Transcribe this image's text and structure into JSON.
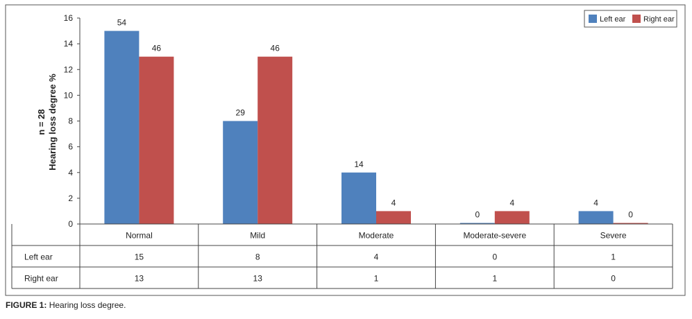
{
  "caption": {
    "label": "FIGURE 1:",
    "text": "Hearing loss degree."
  },
  "chart_data": {
    "type": "bar",
    "ylabel_line1": "n = 28",
    "ylabel_line2": "Hearing loss degree %",
    "ylim": [
      0,
      16
    ],
    "yticks": [
      0,
      2,
      4,
      6,
      8,
      10,
      12,
      14,
      16
    ],
    "grid": false,
    "legend_position": "top-right",
    "categories": [
      "Normal",
      "Mild",
      "Moderate",
      "Moderate-severe",
      "Severe"
    ],
    "series": [
      {
        "name": "Left ear",
        "color": "#4f81bd",
        "values": [
          15,
          8,
          4,
          0,
          1
        ],
        "labels": [
          "54",
          "29",
          "14",
          "0",
          "4"
        ]
      },
      {
        "name": "Right ear",
        "color": "#c0504d",
        "values": [
          13,
          13,
          1,
          1,
          0
        ],
        "labels": [
          "46",
          "46",
          "4",
          "4",
          "0"
        ]
      }
    ],
    "table": {
      "rows": [
        {
          "label": "Left ear",
          "values": [
            "15",
            "8",
            "4",
            "0",
            "1"
          ]
        },
        {
          "label": "Right ear",
          "values": [
            "13",
            "13",
            "1",
            "1",
            "0"
          ]
        }
      ]
    }
  }
}
